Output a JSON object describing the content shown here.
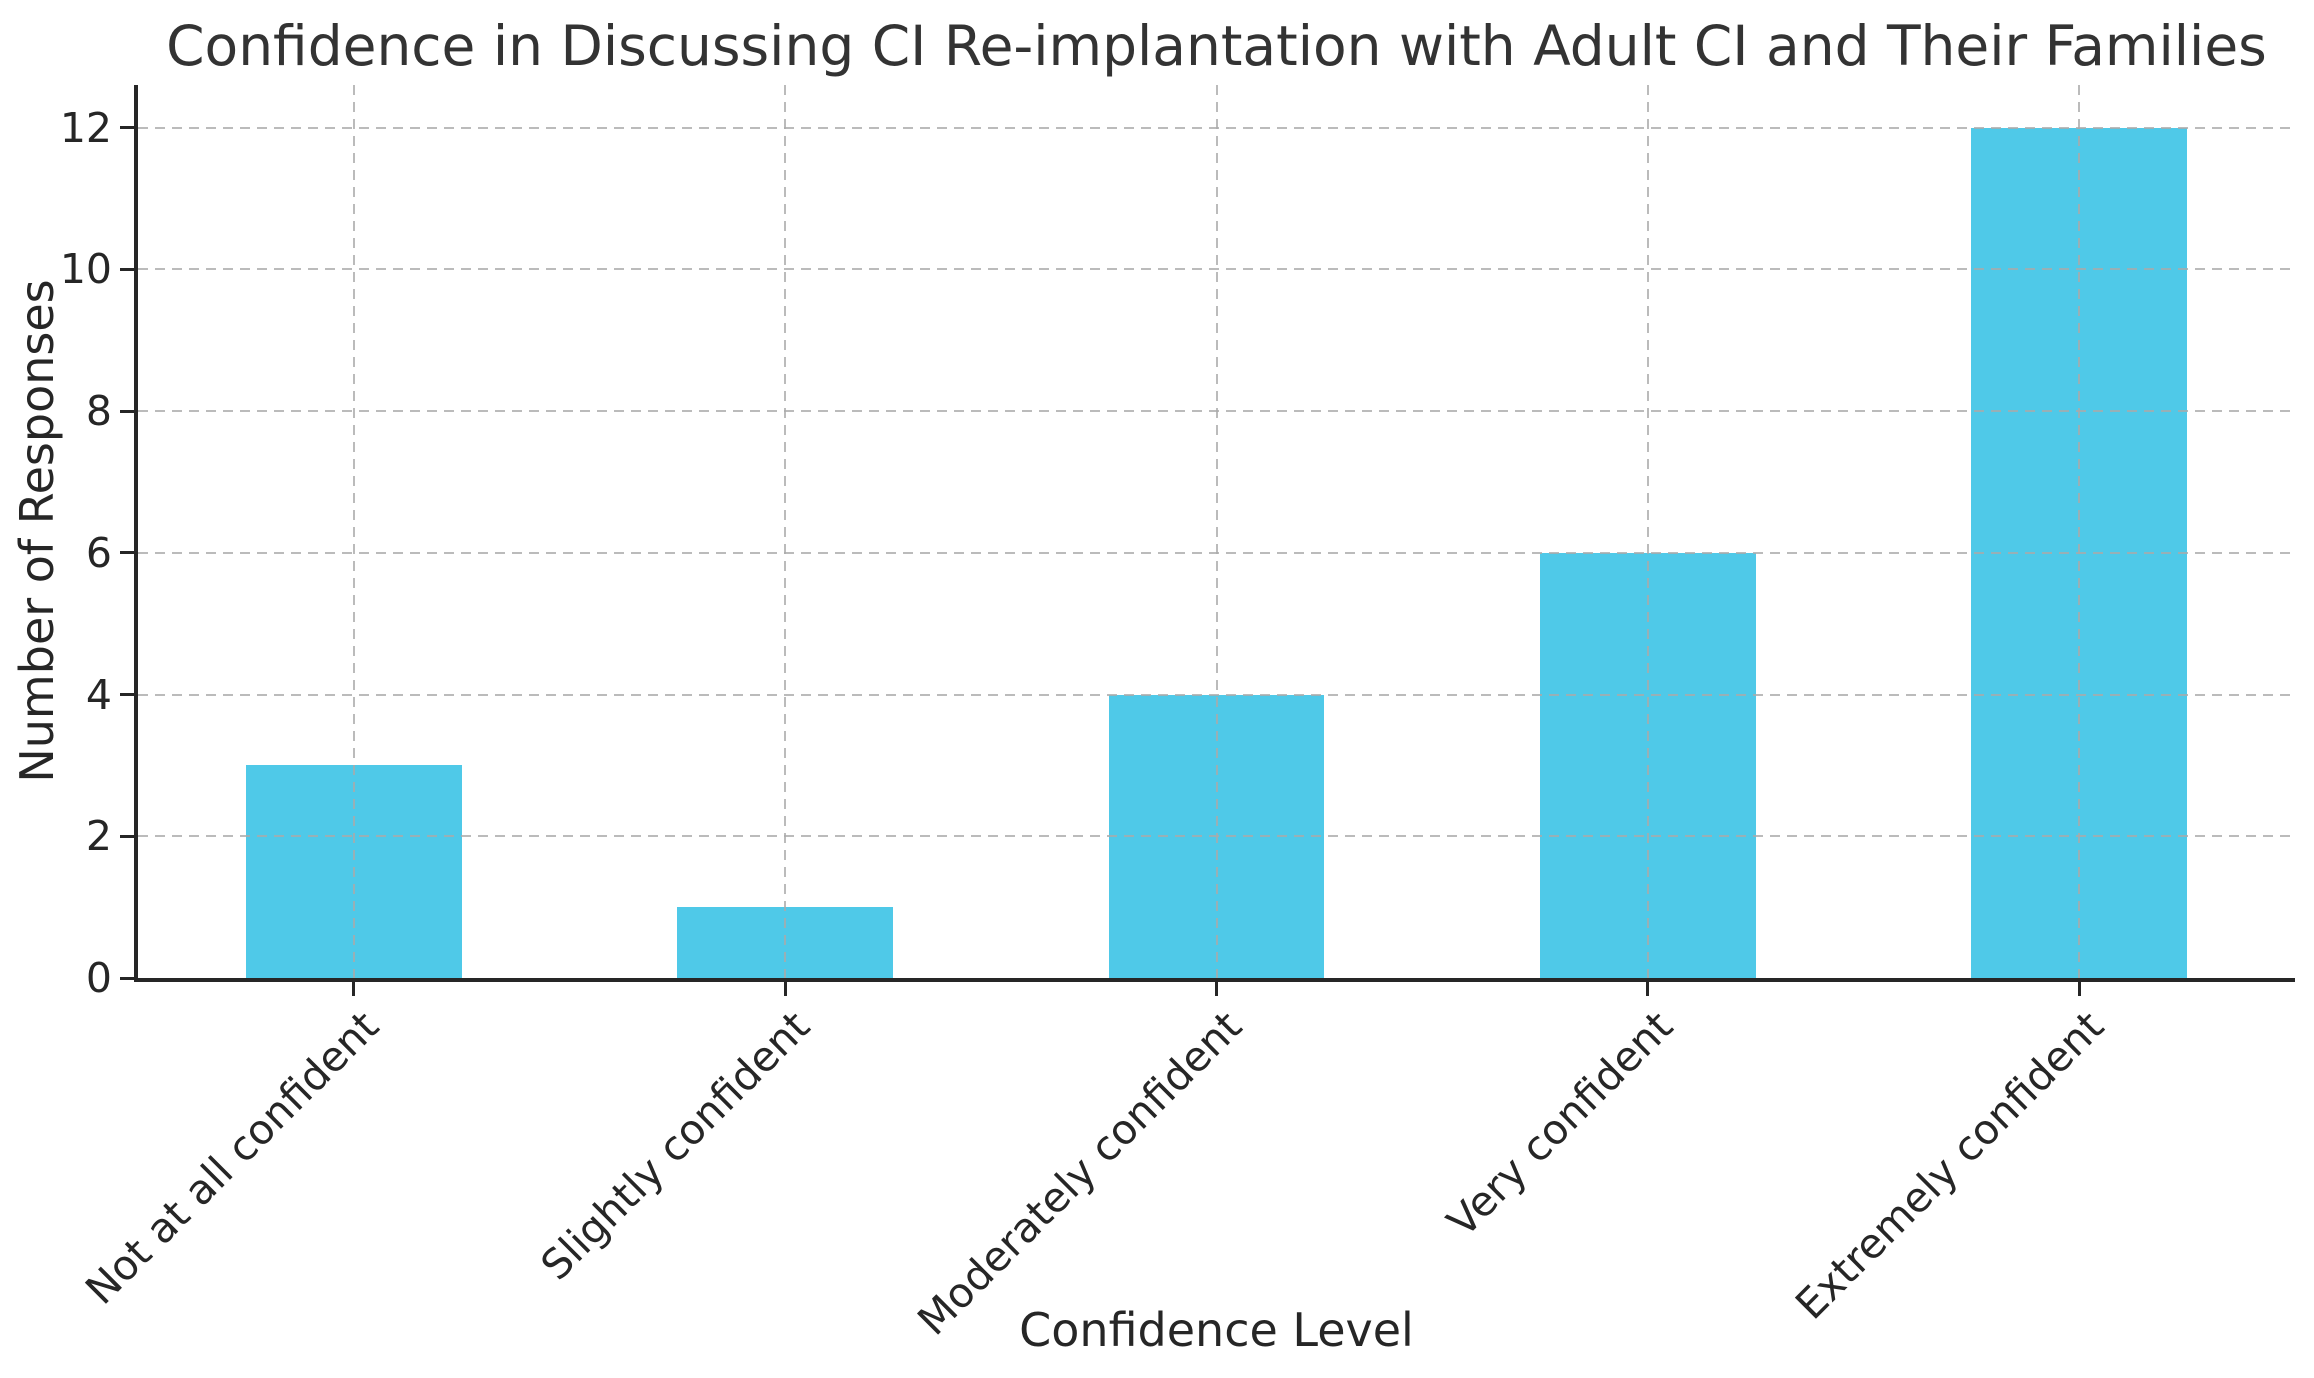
{
  "chart_data": {
    "type": "bar",
    "title": "Confidence in Discussing CI Re-implantation with Adult CI and Their Families",
    "xlabel": "Confidence Level",
    "ylabel": "Number of Responses",
    "categories": [
      "Not at all confident",
      "Slightly confident",
      "Moderately confident",
      "Very confident",
      "Extremely confident"
    ],
    "values": [
      3,
      1,
      4,
      6,
      12
    ],
    "yticks": [
      0,
      2,
      4,
      6,
      8,
      10,
      12
    ],
    "ylim": [
      0,
      12.6
    ],
    "bar_color": "#4FC9E8",
    "bar_width_fraction": 0.5,
    "grid": true,
    "grid_style": "dashed",
    "grid_over_bars": true,
    "grid_color": "#c9c9c9",
    "spine_color": "#262626",
    "text_color": "#262626",
    "title_color": "#333333",
    "background": "#ffffff",
    "x_tick_rotation": 45,
    "legend": null
  }
}
